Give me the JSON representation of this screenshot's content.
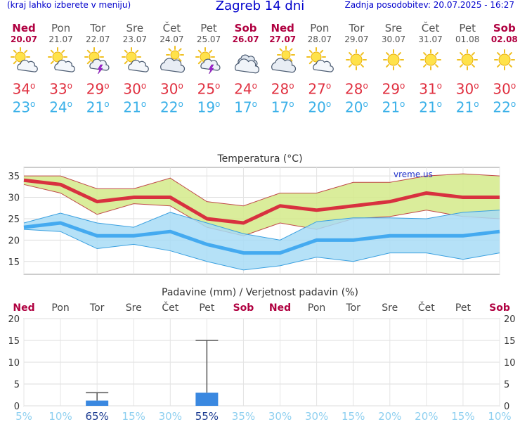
{
  "header": {
    "hint": "(kraj lahko izberete v meniju)",
    "title": "Zagreb 14 dni",
    "updated": "Zadnja posodobitev: 20.07.2025 - 16:27"
  },
  "days": [
    {
      "name": "Ned",
      "date": "20.07",
      "weekend": true,
      "icon": "sun-cloud-icon",
      "tmax": "34",
      "tmin": "23"
    },
    {
      "name": "Pon",
      "date": "21.07",
      "weekend": false,
      "icon": "sun-cloud-icon",
      "tmax": "33",
      "tmin": "24"
    },
    {
      "name": "Tor",
      "date": "22.07",
      "weekend": false,
      "icon": "thunder-sun-icon",
      "tmax": "29",
      "tmin": "21"
    },
    {
      "name": "Sre",
      "date": "23.07",
      "weekend": false,
      "icon": "sun-cloud-icon",
      "tmax": "30",
      "tmin": "21"
    },
    {
      "name": "Čet",
      "date": "24.07",
      "weekend": false,
      "icon": "cloud-sun-icon",
      "tmax": "30",
      "tmin": "22"
    },
    {
      "name": "Pet",
      "date": "25.07",
      "weekend": false,
      "icon": "thunder-sun-icon",
      "tmax": "25",
      "tmin": "19"
    },
    {
      "name": "Sob",
      "date": "26.07",
      "weekend": true,
      "icon": "cloudy-icon",
      "tmax": "24",
      "tmin": "17"
    },
    {
      "name": "Ned",
      "date": "27.07",
      "weekend": true,
      "icon": "cloud-sun-icon",
      "tmax": "28",
      "tmin": "17"
    },
    {
      "name": "Pon",
      "date": "28.07",
      "weekend": false,
      "icon": "sun-cloud-icon",
      "tmax": "27",
      "tmin": "20"
    },
    {
      "name": "Tor",
      "date": "29.07",
      "weekend": false,
      "icon": "sun-icon",
      "tmax": "28",
      "tmin": "20"
    },
    {
      "name": "Sre",
      "date": "30.07",
      "weekend": false,
      "icon": "sun-icon",
      "tmax": "29",
      "tmin": "21"
    },
    {
      "name": "Čet",
      "date": "31.07",
      "weekend": false,
      "icon": "sun-icon",
      "tmax": "31",
      "tmin": "21"
    },
    {
      "name": "Pet",
      "date": "01.08",
      "weekend": false,
      "icon": "sun-icon",
      "tmax": "30",
      "tmin": "21"
    },
    {
      "name": "Sob",
      "date": "02.08",
      "weekend": true,
      "icon": "sun-icon",
      "tmax": "30",
      "tmin": "22"
    }
  ],
  "degree_symbol": "o",
  "colors": {
    "max": "#d8313f",
    "min": "#40a8e8",
    "weekend": "#b00040",
    "bar": "#3a88e0",
    "maxband": "#d4ea8a",
    "minband": "#a8dcf6"
  },
  "chart_data": [
    {
      "type": "line",
      "title": "Temperatura (°C)",
      "watermark": "vreme.us",
      "ylim": [
        12,
        37
      ],
      "yticks": [
        15,
        20,
        25,
        30,
        35
      ],
      "grid": true,
      "x": [
        "Ned",
        "Pon",
        "Tor",
        "Sre",
        "Čet",
        "Pet",
        "Sob",
        "Ned",
        "Pon",
        "Tor",
        "Sre",
        "Čet",
        "Pet",
        "Sob"
      ],
      "series": [
        {
          "values": [
            34,
            33,
            29,
            30,
            30,
            25,
            24,
            28,
            27,
            28,
            29,
            31,
            30,
            30
          ]
        },
        {
          "values": [
            23,
            24,
            21,
            21,
            22,
            19,
            17,
            17,
            20,
            20,
            21,
            21,
            21,
            22
          ]
        },
        {
          "values": [
            35,
            35,
            32,
            32,
            34.5,
            29,
            28,
            31,
            31,
            33.5,
            33.5,
            35,
            35.5,
            35
          ]
        },
        {
          "values": [
            33,
            31,
            26,
            28.5,
            28,
            23,
            21,
            24,
            22.5,
            25,
            25.5,
            27,
            25.5,
            25
          ]
        },
        {
          "values": [
            24,
            26.3,
            24,
            23,
            26.5,
            24,
            21.5,
            20,
            24.3,
            25.2,
            25.2,
            25,
            26.5,
            27
          ]
        },
        {
          "values": [
            22.5,
            22,
            18,
            19,
            17.5,
            15,
            13,
            14,
            16,
            15,
            17,
            17,
            15.5,
            17
          ]
        }
      ]
    },
    {
      "type": "bar",
      "title": "Padavine (mm) / Verjetnost padavin (%)",
      "ylim": [
        0,
        20
      ],
      "yticks": [
        0,
        5,
        10,
        15,
        20
      ],
      "grid": true,
      "categories": [
        "Ned",
        "Pon",
        "Tor",
        "Sre",
        "Čet",
        "Pet",
        "Sob",
        "Ned",
        "Pon",
        "Tor",
        "Sre",
        "Čet",
        "Pet",
        "Sob"
      ],
      "values": [
        0,
        0,
        1.2,
        0,
        0,
        3,
        0,
        0,
        0,
        0,
        0,
        0,
        0,
        0
      ],
      "error_high": [
        0,
        0,
        3,
        0,
        0,
        15,
        0,
        0,
        0,
        0,
        0,
        0,
        0,
        0
      ],
      "probability": [
        "5%",
        "10%",
        "65%",
        "15%",
        "30%",
        "55%",
        "35%",
        "30%",
        "30%",
        "15%",
        "20%",
        "20%",
        "15%",
        "10%"
      ],
      "probability_strong": [
        false,
        false,
        true,
        false,
        false,
        true,
        false,
        false,
        false,
        false,
        false,
        false,
        false,
        false
      ]
    }
  ]
}
